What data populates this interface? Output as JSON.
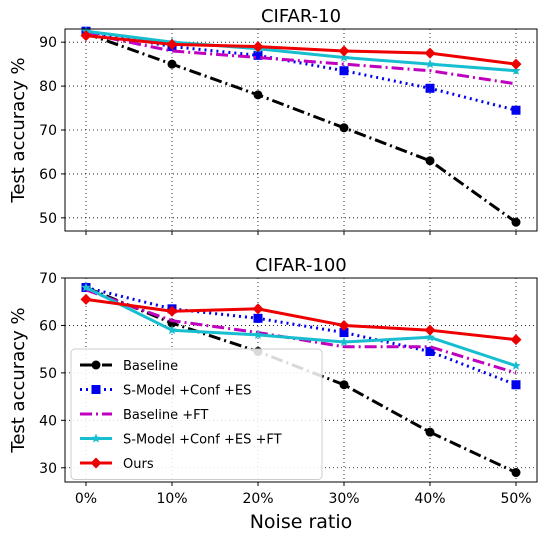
{
  "colors": {
    "baseline": "#000000",
    "smodel": "#0000ee",
    "baseline_ft": "#bf00bf",
    "smodel_ft": "#17becf",
    "ours": "#ee0000"
  },
  "chart_data": [
    {
      "type": "line",
      "title": "CIFAR-10",
      "xlabel": "",
      "ylabel": "Test accuracy %",
      "categories": [
        "0%",
        "10%",
        "20%",
        "30%",
        "40%",
        "50%"
      ],
      "ylim": [
        47,
        93
      ],
      "yticks": [
        "50",
        "60",
        "70",
        "80",
        "90"
      ],
      "grid": true,
      "series": [
        {
          "name": "Baseline",
          "color": "#000000",
          "style": "dashdot",
          "marker": "circle",
          "values": [
            92,
            85,
            78,
            70.5,
            63,
            49
          ]
        },
        {
          "name": "S-Model +Conf +ES",
          "color": "#0000ee",
          "style": "dotted",
          "marker": "square",
          "values": [
            92.5,
            89,
            87,
            83.5,
            79.5,
            74.5
          ]
        },
        {
          "name": "Baseline +FT",
          "color": "#bf00bf",
          "style": "dashdot",
          "marker": "none",
          "values": [
            92,
            88,
            86.5,
            85,
            83.5,
            80.5
          ]
        },
        {
          "name": "S-Model +Conf +ES +FT",
          "color": "#17becf",
          "style": "solid",
          "marker": "star",
          "values": [
            92.5,
            90,
            88.5,
            86.5,
            85,
            83.5
          ]
        },
        {
          "name": "Ours",
          "color": "#ee0000",
          "style": "solid",
          "marker": "diamond",
          "values": [
            91.5,
            89.5,
            89,
            88,
            87.5,
            85
          ]
        }
      ]
    },
    {
      "type": "line",
      "title": "CIFAR-100",
      "xlabel": "Noise ratio",
      "ylabel": "Test accuracy %",
      "categories": [
        "0%",
        "10%",
        "20%",
        "30%",
        "40%",
        "50%"
      ],
      "ylim": [
        27,
        70
      ],
      "yticks": [
        "30",
        "40",
        "50",
        "60",
        "70"
      ],
      "grid": true,
      "legend": "lower-left",
      "series": [
        {
          "name": "Baseline",
          "color": "#000000",
          "style": "dashdot",
          "marker": "circle",
          "values": [
            68,
            60.5,
            54.5,
            47.5,
            37.5,
            29
          ]
        },
        {
          "name": "S-Model +Conf +ES",
          "color": "#0000ee",
          "style": "dotted",
          "marker": "square",
          "values": [
            68,
            63.5,
            61.5,
            58.5,
            54.5,
            47.5
          ]
        },
        {
          "name": "Baseline +FT",
          "color": "#bf00bf",
          "style": "dashdot",
          "marker": "none",
          "values": [
            67.5,
            61,
            58.5,
            55.5,
            55.5,
            50
          ]
        },
        {
          "name": "S-Model +Conf +ES +FT",
          "color": "#17becf",
          "style": "solid",
          "marker": "star",
          "values": [
            68,
            59,
            58,
            56.5,
            57.5,
            51.5
          ]
        },
        {
          "name": "Ours",
          "color": "#ee0000",
          "style": "solid",
          "marker": "diamond",
          "values": [
            65.5,
            63,
            63.5,
            60,
            59,
            57
          ]
        }
      ]
    }
  ]
}
